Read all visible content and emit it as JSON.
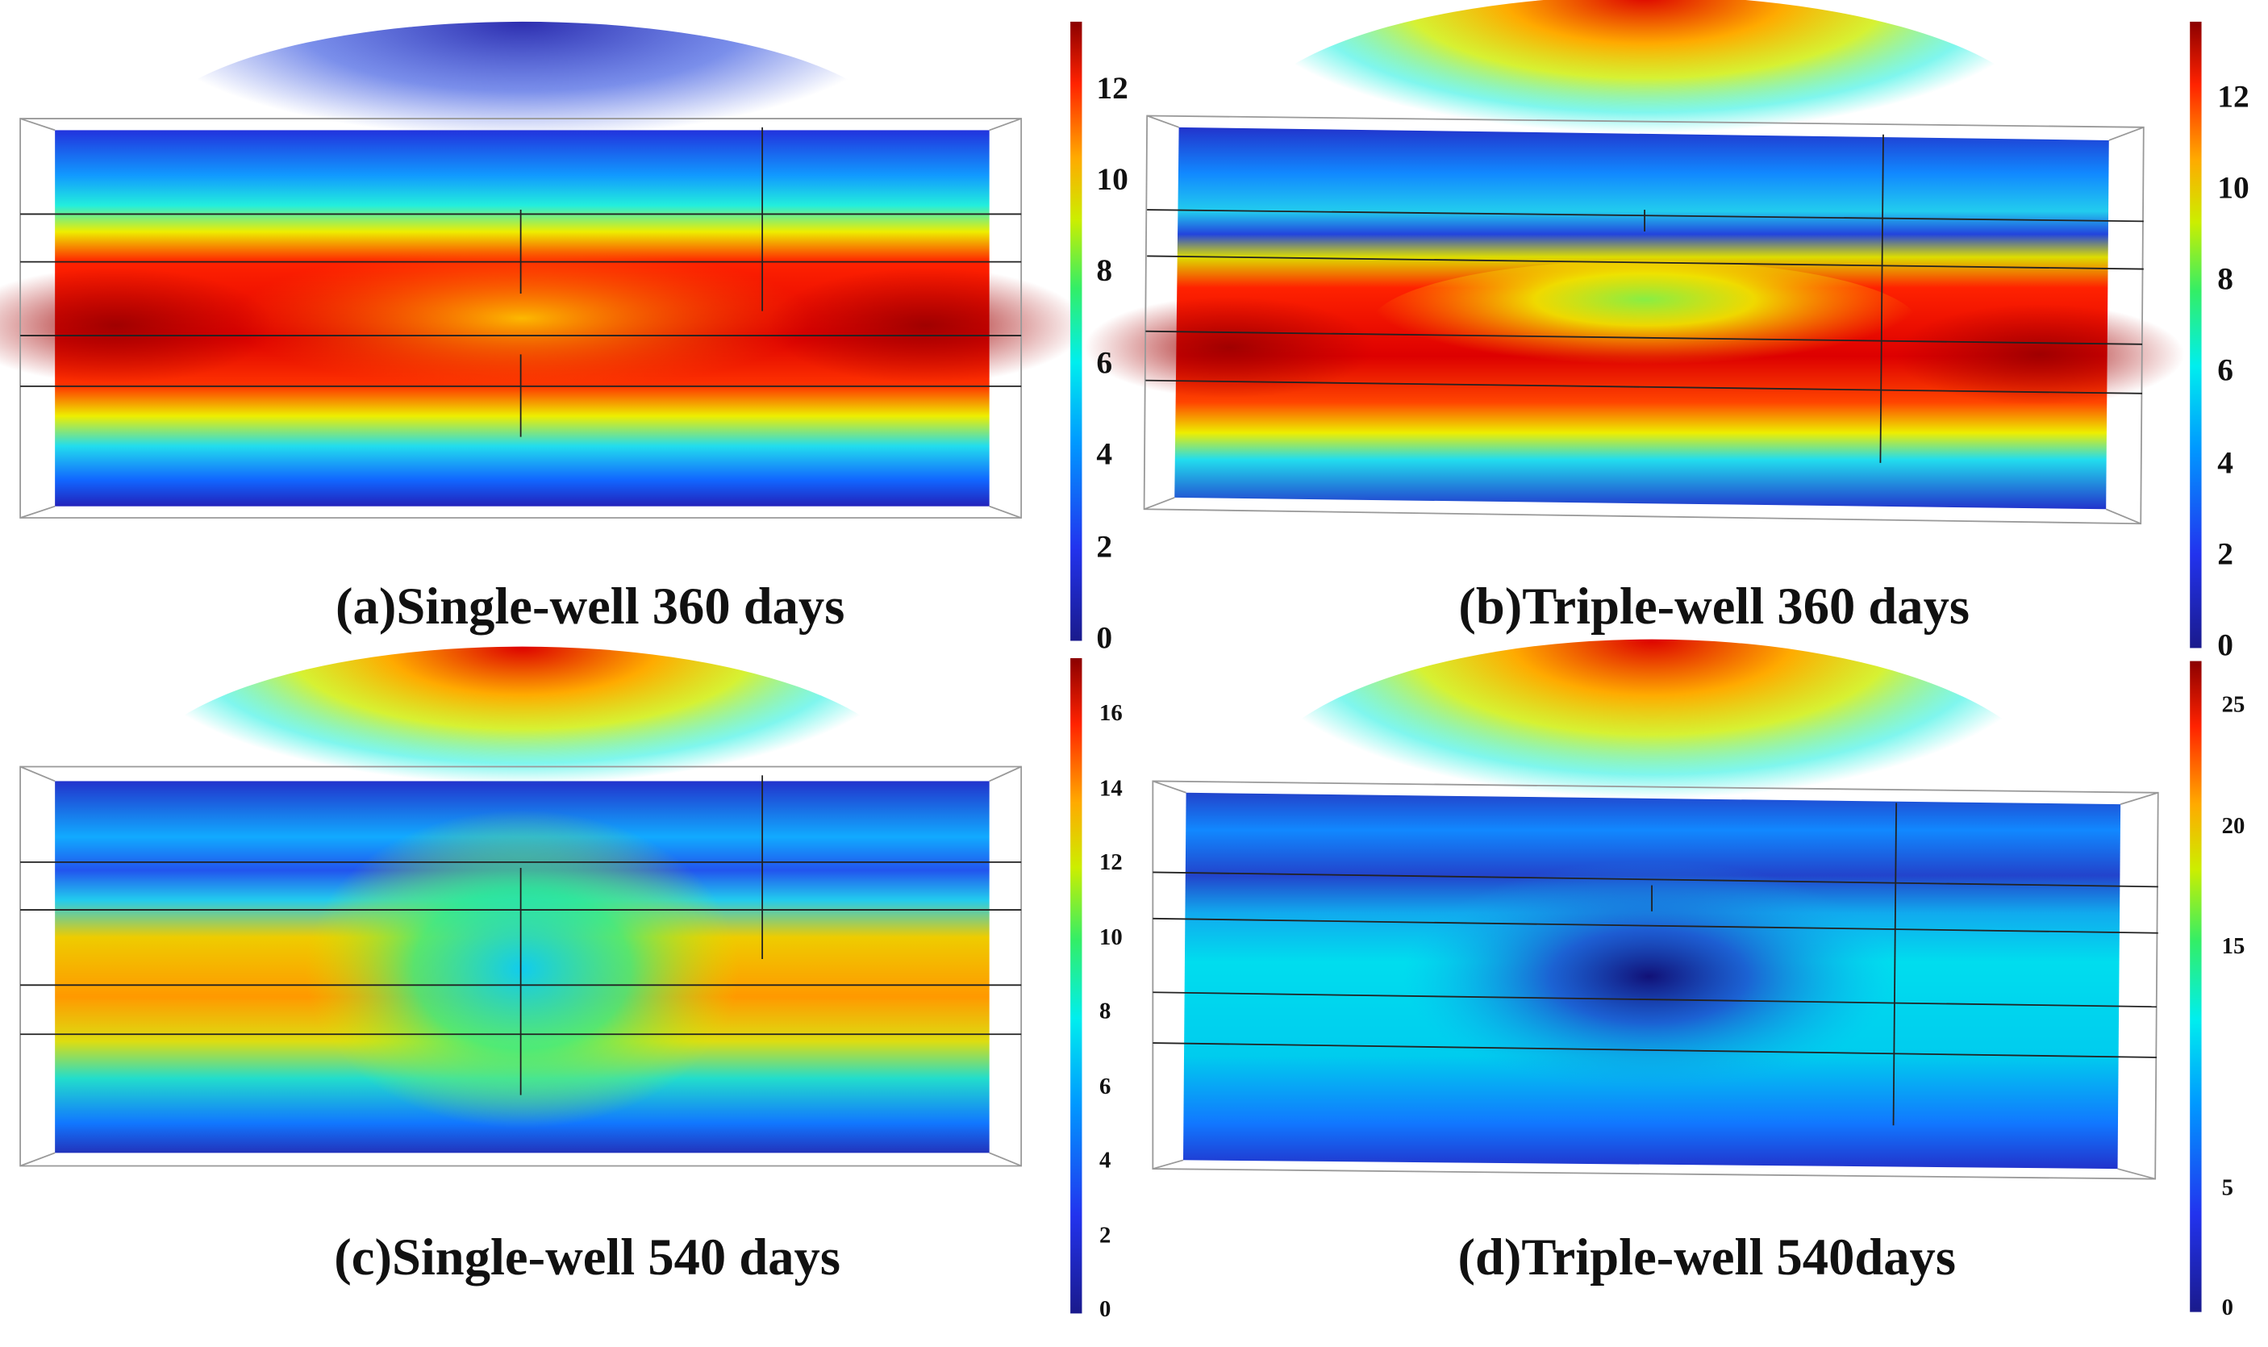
{
  "chart_data": [
    {
      "type": "heatmap",
      "title": "(a)Single-well 360 days",
      "colormap": "jet",
      "colorbar": {
        "min": 0,
        "max": 13.5,
        "ticks": [
          "0",
          "2",
          "4",
          "6",
          "8",
          "10",
          "12"
        ]
      }
    },
    {
      "type": "heatmap",
      "title": "(b)Triple-well 360 days",
      "colormap": "jet",
      "colorbar": {
        "min": 0,
        "max": 13.7,
        "ticks": [
          "0",
          "2",
          "4",
          "6",
          "8",
          "10",
          "12"
        ]
      }
    },
    {
      "type": "heatmap",
      "title": "(c)Single-well 540 days",
      "colormap": "jet",
      "colorbar": {
        "min": 0,
        "max": 17.6,
        "ticks": [
          "0",
          "2",
          "4",
          "6",
          "8",
          "10",
          "12",
          "14",
          "16"
        ]
      }
    },
    {
      "type": "heatmap",
      "title": "(d)Triple-well 540days",
      "colormap": "jet",
      "colorbar": {
        "min": 0,
        "max": 27,
        "ticks": [
          "0",
          "5",
          "15",
          "20",
          "25"
        ]
      }
    }
  ]
}
